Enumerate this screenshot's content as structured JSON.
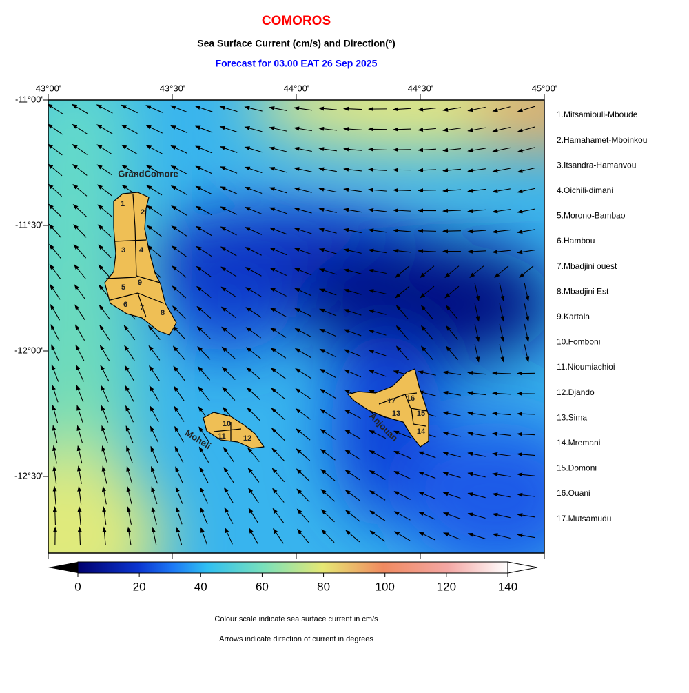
{
  "title": "COMOROS",
  "subtitle": "Sea Surface Current (cm/s) and Direction(º)",
  "forecast": "Forecast for  03.00 EAT 26 Sep 2025",
  "x_axis_labels": [
    "43°00'",
    "43°30'",
    "44°00'",
    "44°30'",
    "45°00'"
  ],
  "y_axis_labels": [
    "-11°00'",
    "-11°30'",
    "-12°00'",
    "-12°30'"
  ],
  "islands": [
    "GrandComore",
    "Moheli",
    "Anjouan"
  ],
  "region_numbers": [
    "1",
    "2",
    "3",
    "4",
    "5",
    "6",
    "7",
    "8",
    "9",
    "10",
    "11",
    "12",
    "13",
    "14",
    "15",
    "16",
    "17"
  ],
  "legend": [
    "1.Mitsamiouli-Mboude",
    "2.Hamahamet-Mboinkou",
    "3.Itsandra-Hamanvou",
    "4.Oichili-dimani",
    "5.Morono-Bambao",
    "6.Hambou",
    "7.Mbadjini ouest",
    "8.Mbadjini Est",
    "9.Kartala",
    "10.Fomboni",
    "11.Nioumiachioi",
    "12.Djando",
    "13.Sima",
    "14.Mremani",
    "15.Domoni",
    "16.Ouani",
    "17.Mutsamudu"
  ],
  "colorbar": {
    "range": [
      0,
      140
    ],
    "ticks": [
      0,
      20,
      40,
      60,
      80,
      100,
      120,
      140
    ]
  },
  "notes": [
    "Colour scale indicate sea surface current in cm/s",
    "Arrows indicate direction of current in degrees"
  ]
}
